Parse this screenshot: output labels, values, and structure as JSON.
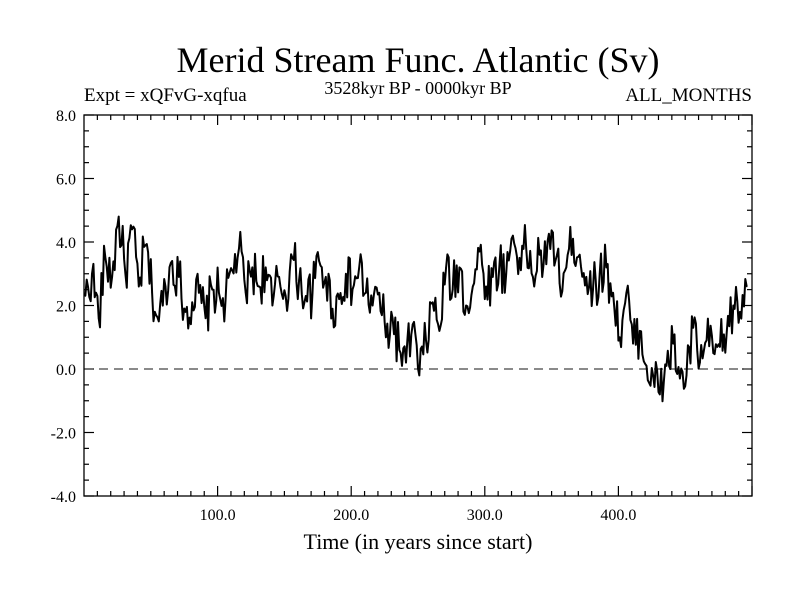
{
  "chart_data": {
    "type": "line",
    "title": "Merid Stream Func. Atlantic (Sv)",
    "subtitle_left": "Expt = xQFvG-xqfua",
    "subtitle_center": "3528kyr BP - 0000kyr BP",
    "subtitle_right": "ALL_MONTHS",
    "xlabel": "Time (in years since start)",
    "ylabel": "",
    "xlim": [
      0,
      500
    ],
    "ylim": [
      -4.0,
      8.0
    ],
    "x_ticks": [
      100,
      200,
      300,
      400
    ],
    "x_tick_labels": [
      "100.0",
      "200.0",
      "300.0",
      "400.0"
    ],
    "y_ticks": [
      -4,
      -2,
      0,
      2,
      4,
      6,
      8
    ],
    "y_tick_labels": [
      "-4.0",
      "-2.0",
      "0.0",
      "2.0",
      "4.0",
      "6.0",
      "8.0"
    ],
    "zero_line": "dashed",
    "grid": false,
    "series": [
      {
        "name": "Merid Stream Func. Atlantic",
        "x_start": 1,
        "x_step": 5,
        "values": [
          2.3,
          3.0,
          1.6,
          3.5,
          2.9,
          4.8,
          3.0,
          4.4,
          2.6,
          3.9,
          2.4,
          1.5,
          2.6,
          3.4,
          2.9,
          1.8,
          2.1,
          2.4,
          1.6,
          2.5,
          2.4,
          2.2,
          3.1,
          3.8,
          2.4,
          3.2,
          2.6,
          3.2,
          2.0,
          2.9,
          2.3,
          3.5,
          2.8,
          2.3,
          2.4,
          3.4,
          2.9,
          1.9,
          2.2,
          3.0,
          2.5,
          3.2,
          2.4,
          2.0,
          2.4,
          1.0,
          1.6,
          0.6,
          0.2,
          1.4,
          -0.2,
          0.9,
          2.1,
          1.2,
          3.2,
          2.5,
          3.2,
          2.0,
          2.6,
          3.7,
          2.6,
          2.9,
          3.3,
          3.0,
          4.2,
          3.5,
          3.8,
          2.9,
          3.6,
          3.3,
          4.3,
          2.7,
          3.2,
          4.1,
          3.6,
          2.9,
          2.5,
          3.0,
          3.2,
          2.4,
          1.0,
          2.4,
          0.8,
          1.2,
          0.1,
          -0.2,
          -0.8,
          0.1,
          0.8,
          -0.3,
          -0.2,
          1.3,
          0.2,
          0.9,
          0.5,
          0.7,
          1.1,
          2.0,
          1.8,
          2.6
        ]
      }
    ]
  }
}
